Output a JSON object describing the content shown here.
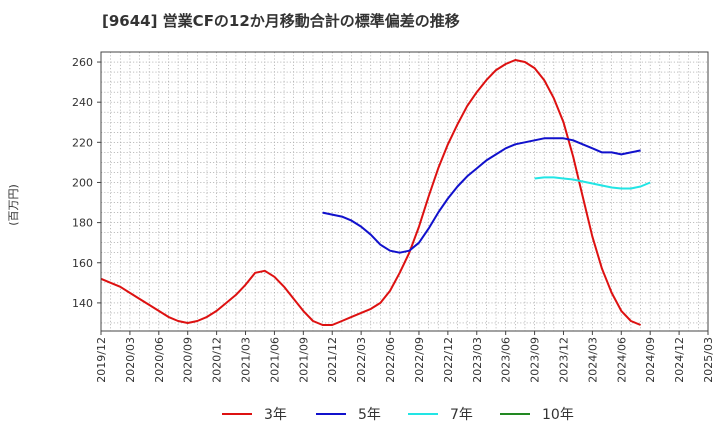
{
  "chart_data": {
    "type": "line",
    "title": "[9644]  営業CFの12か月移動合計の標準偏差の推移",
    "ylabel": "(百万円)",
    "xlabel": "",
    "ylim": [
      126,
      265
    ],
    "yticks": [
      140,
      160,
      180,
      200,
      220,
      240,
      260
    ],
    "x_range": [
      "2019-12",
      "2025-03"
    ],
    "x_tick_labels": [
      "2019/12",
      "2020/03",
      "2020/06",
      "2020/09",
      "2020/12",
      "2021/03",
      "2021/06",
      "2021/09",
      "2021/12",
      "2022/03",
      "2022/06",
      "2022/09",
      "2022/12",
      "2023/03",
      "2023/06",
      "2023/09",
      "2023/12",
      "2024/03",
      "2024/06",
      "2024/09",
      "2024/12",
      "2025/03"
    ],
    "grid": true,
    "legend_position": "bottom",
    "series": [
      {
        "name": "3年",
        "color": "#dd1111",
        "points": [
          [
            "2019-12",
            152
          ],
          [
            "2020-01",
            150
          ],
          [
            "2020-02",
            148
          ],
          [
            "2020-03",
            145
          ],
          [
            "2020-04",
            142
          ],
          [
            "2020-05",
            139
          ],
          [
            "2020-06",
            136
          ],
          [
            "2020-07",
            133
          ],
          [
            "2020-08",
            131
          ],
          [
            "2020-09",
            130
          ],
          [
            "2020-10",
            131
          ],
          [
            "2020-11",
            133
          ],
          [
            "2020-12",
            136
          ],
          [
            "2021-01",
            140
          ],
          [
            "2021-02",
            144
          ],
          [
            "2021-03",
            149
          ],
          [
            "2021-04",
            155
          ],
          [
            "2021-05",
            156
          ],
          [
            "2021-06",
            153
          ],
          [
            "2021-07",
            148
          ],
          [
            "2021-08",
            142
          ],
          [
            "2021-09",
            136
          ],
          [
            "2021-10",
            131
          ],
          [
            "2021-11",
            129
          ],
          [
            "2021-12",
            129
          ],
          [
            "2022-01",
            131
          ],
          [
            "2022-02",
            133
          ],
          [
            "2022-03",
            135
          ],
          [
            "2022-04",
            137
          ],
          [
            "2022-05",
            140
          ],
          [
            "2022-06",
            146
          ],
          [
            "2022-07",
            155
          ],
          [
            "2022-08",
            165
          ],
          [
            "2022-09",
            178
          ],
          [
            "2022-10",
            193
          ],
          [
            "2022-11",
            207
          ],
          [
            "2022-12",
            219
          ],
          [
            "2023-01",
            229
          ],
          [
            "2023-02",
            238
          ],
          [
            "2023-03",
            245
          ],
          [
            "2023-04",
            251
          ],
          [
            "2023-05",
            256
          ],
          [
            "2023-06",
            259
          ],
          [
            "2023-07",
            261
          ],
          [
            "2023-08",
            260
          ],
          [
            "2023-09",
            257
          ],
          [
            "2023-10",
            251
          ],
          [
            "2023-11",
            242
          ],
          [
            "2023-12",
            230
          ],
          [
            "2024-01",
            213
          ],
          [
            "2024-02",
            193
          ],
          [
            "2024-03",
            173
          ],
          [
            "2024-04",
            157
          ],
          [
            "2024-05",
            145
          ],
          [
            "2024-06",
            136
          ],
          [
            "2024-07",
            131
          ],
          [
            "2024-08",
            129
          ]
        ]
      },
      {
        "name": "5年",
        "color": "#1111cc",
        "points": [
          [
            "2021-11",
            185
          ],
          [
            "2021-12",
            184
          ],
          [
            "2022-01",
            183
          ],
          [
            "2022-02",
            181
          ],
          [
            "2022-03",
            178
          ],
          [
            "2022-04",
            174
          ],
          [
            "2022-05",
            169
          ],
          [
            "2022-06",
            166
          ],
          [
            "2022-07",
            165
          ],
          [
            "2022-08",
            166
          ],
          [
            "2022-09",
            170
          ],
          [
            "2022-10",
            177
          ],
          [
            "2022-11",
            185
          ],
          [
            "2022-12",
            192
          ],
          [
            "2023-01",
            198
          ],
          [
            "2023-02",
            203
          ],
          [
            "2023-03",
            207
          ],
          [
            "2023-04",
            211
          ],
          [
            "2023-05",
            214
          ],
          [
            "2023-06",
            217
          ],
          [
            "2023-07",
            219
          ],
          [
            "2023-08",
            220
          ],
          [
            "2023-09",
            221
          ],
          [
            "2023-10",
            222
          ],
          [
            "2023-11",
            222
          ],
          [
            "2023-12",
            222
          ],
          [
            "2024-01",
            221
          ],
          [
            "2024-02",
            219
          ],
          [
            "2024-03",
            217
          ],
          [
            "2024-04",
            215
          ],
          [
            "2024-05",
            215
          ],
          [
            "2024-06",
            214
          ],
          [
            "2024-07",
            215
          ],
          [
            "2024-08",
            216
          ]
        ]
      },
      {
        "name": "7年",
        "color": "#22e5e5",
        "points": [
          [
            "2023-09",
            202
          ],
          [
            "2023-10",
            202.5
          ],
          [
            "2023-11",
            202.5
          ],
          [
            "2023-12",
            202
          ],
          [
            "2024-01",
            201.5
          ],
          [
            "2024-02",
            200.5
          ],
          [
            "2024-03",
            199.5
          ],
          [
            "2024-04",
            198.5
          ],
          [
            "2024-05",
            197.5
          ],
          [
            "2024-06",
            197
          ],
          [
            "2024-07",
            197
          ],
          [
            "2024-08",
            198
          ],
          [
            "2024-09",
            200
          ]
        ]
      },
      {
        "name": "10年",
        "color": "#228822",
        "points": []
      }
    ]
  }
}
